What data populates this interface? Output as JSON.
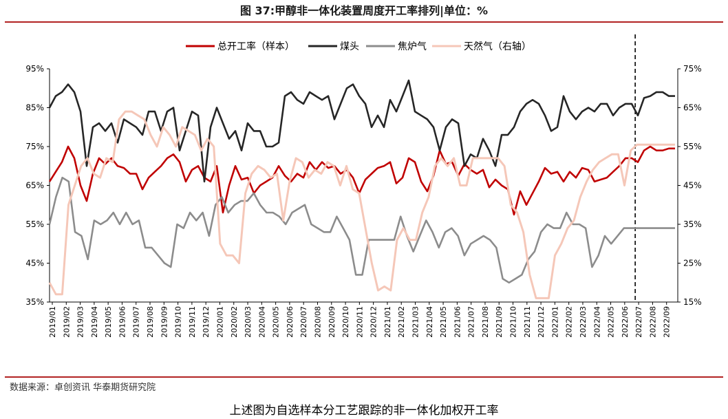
{
  "title": "图 37:甲醇非一体化装置周度开工率排列|单位：%",
  "source": "数据来源：卓创资讯 华泰期货研究院",
  "caption": "上述图为自选样本分工艺跟踪的非一体化加权开工率",
  "colors": {
    "total": "#c00000",
    "coal": "#262626",
    "coke": "#8c8c8c",
    "gas": "#f5c7b8",
    "accent": "#b22222"
  },
  "chart_data": {
    "type": "line",
    "x_tick_labels": [
      "2019/01",
      "2019/02",
      "2019/03",
      "2019/04",
      "2019/05",
      "2019/06",
      "2019/07",
      "2019/08",
      "2019/09",
      "2019/10",
      "2019/11",
      "2019/12",
      "2020/01",
      "2020/02",
      "2020/03",
      "2020/04",
      "2020/05",
      "2020/06",
      "2020/07",
      "2020/08",
      "2020/09",
      "2020/10",
      "2020/11",
      "2020/12",
      "2021/01",
      "2021/02",
      "2021/03",
      "2021/04",
      "2021/05",
      "2021/06",
      "2021/07",
      "2021/08",
      "2021/09",
      "2021/10",
      "2021/11",
      "2021/12",
      "2022/01",
      "2022/02",
      "2022/03",
      "2022/04",
      "2022/05",
      "2022/06",
      "2022/07",
      "2022/08",
      "2022/09"
    ],
    "y_left": {
      "min": 35,
      "max": 95,
      "ticks": [
        "35%",
        "45%",
        "55%",
        "65%",
        "75%",
        "85%",
        "95%"
      ]
    },
    "y_right": {
      "min": 15,
      "max": 75,
      "ticks": [
        "15%",
        "25%",
        "35%",
        "45%",
        "55%",
        "65%",
        "75%"
      ]
    },
    "legend_position": "top",
    "divider_at": "2022/07",
    "series": [
      {
        "name": "总开工率（样本）",
        "axis": "left",
        "color": "#c00000",
        "values": [
          66,
          68.5,
          71,
          75,
          72,
          65,
          61,
          68,
          72,
          70.5,
          72,
          70,
          69.5,
          68,
          68,
          64,
          67,
          68.5,
          70,
          72,
          73,
          71,
          66,
          69,
          70,
          67,
          66,
          70,
          58,
          65,
          70,
          66.5,
          67,
          63,
          65,
          66,
          67,
          70,
          67.5,
          66,
          68,
          67,
          71,
          69,
          71,
          69.5,
          70,
          68,
          69,
          67,
          63,
          66.5,
          68,
          69.5,
          70,
          71,
          65.5,
          67,
          72,
          71,
          66,
          63.5,
          67.5,
          74,
          70.5,
          71,
          67.5,
          70.5,
          69,
          68,
          69,
          64.5,
          66.5,
          65,
          64,
          57.5,
          63.5,
          60,
          63,
          66,
          69.5,
          68,
          68.5,
          66,
          68.5,
          67,
          69.5,
          69,
          66,
          66.5,
          67,
          68.5,
          70,
          72,
          72,
          71,
          74,
          75,
          74,
          74,
          74.5,
          74.5
        ]
      },
      {
        "name": "煤头",
        "axis": "left",
        "color": "#262626",
        "values": [
          85,
          88,
          89,
          91,
          89,
          84,
          70,
          80,
          81,
          79,
          81,
          76,
          82,
          81,
          80,
          78,
          84,
          84,
          79,
          84,
          85,
          74,
          79,
          84,
          83,
          66,
          80,
          85,
          81,
          77,
          79,
          74,
          81,
          79,
          79,
          75,
          75,
          76,
          88,
          89,
          87,
          86,
          89,
          88,
          87,
          88,
          82,
          86,
          90,
          91,
          88,
          86,
          80,
          83,
          80,
          87,
          84,
          88,
          92,
          84,
          83,
          82,
          80,
          74,
          80,
          82,
          81,
          70,
          73,
          72,
          77,
          74,
          70,
          78,
          78,
          80,
          84,
          86,
          87,
          86,
          83,
          79,
          80,
          88,
          84,
          82,
          84,
          85,
          84,
          86,
          86,
          83,
          85,
          86,
          86,
          83,
          87.5,
          88,
          89,
          89,
          88,
          88
        ]
      },
      {
        "name": "焦炉气",
        "axis": "left",
        "color": "#8c8c8c",
        "values": [
          55,
          62,
          67,
          66,
          53,
          52,
          46,
          56,
          55,
          56,
          58,
          55,
          58,
          55,
          56,
          49,
          49,
          47,
          45,
          44,
          55,
          54,
          58,
          56,
          58,
          52,
          60,
          62,
          58,
          60,
          61,
          61,
          63,
          60,
          58,
          58,
          57,
          55,
          58,
          59,
          60,
          55,
          54,
          53,
          53,
          57,
          54,
          51,
          42,
          42,
          51,
          51,
          51,
          51,
          51,
          57,
          52,
          48,
          52,
          56,
          53,
          49,
          53,
          54,
          52,
          47,
          50,
          51,
          52,
          51,
          49,
          41,
          40,
          41,
          42,
          46,
          48,
          53,
          55,
          54,
          54,
          58,
          55,
          55,
          54,
          44,
          47,
          52,
          50,
          52,
          54,
          54,
          54,
          54,
          54,
          54,
          54,
          54,
          54
        ]
      },
      {
        "name": "天然气（右轴）",
        "axis": "right",
        "color": "#f5c7b8",
        "values": [
          20,
          17,
          17,
          40,
          45,
          50,
          52,
          48,
          47,
          52,
          51,
          62,
          64,
          64,
          63,
          62,
          58,
          55,
          60,
          58,
          55,
          60,
          59,
          58,
          54,
          57,
          55,
          30,
          27,
          27,
          25,
          43,
          48,
          50,
          49,
          47,
          48,
          36,
          46,
          52,
          51,
          47,
          49,
          48,
          51,
          50,
          45,
          50,
          44,
          43,
          34,
          25,
          18,
          19,
          18,
          31,
          34,
          31,
          31,
          38,
          42,
          50,
          52,
          50,
          52,
          45,
          45,
          52,
          52,
          52,
          52,
          52,
          50,
          40,
          38,
          33,
          22,
          16,
          16,
          16,
          27,
          30,
          34,
          36,
          42,
          46,
          49,
          51,
          52,
          53,
          53,
          45,
          54,
          55.5,
          55.5,
          55.5,
          55.5,
          55.5,
          55.5,
          55.5
        ]
      }
    ]
  }
}
